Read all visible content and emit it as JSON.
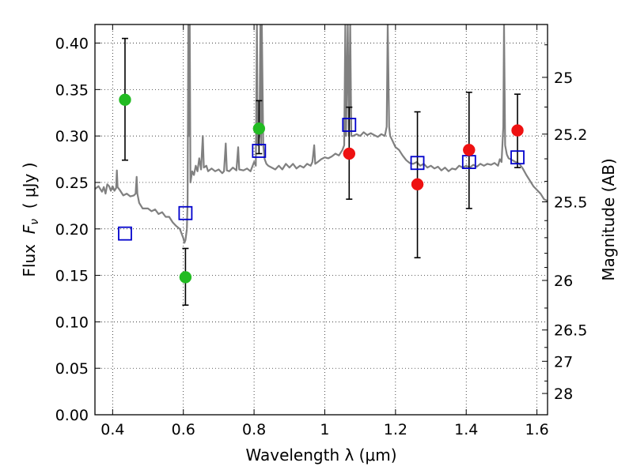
{
  "chart_data": {
    "type": "scatter",
    "title": "",
    "xlabel": "Wavelength  λ (μm)",
    "ylabel": "Flux  F_ν  ( μJy )",
    "ylabel_parts": {
      "prefix": "Flux  ",
      "var": "F",
      "sub": "ν",
      "suffix": "  ( μJy )"
    },
    "ylabel_right": "Magnitude (AB)",
    "xlim": [
      0.35,
      1.63
    ],
    "ylim": [
      0.0,
      0.42
    ],
    "grid": true,
    "colors": {
      "spectrum": "#808080",
      "green": "#22bb22",
      "red": "#ee1111",
      "model_box": "#0000cc",
      "errorbar": "#000000"
    },
    "x_ticks": [
      {
        "value": 0.4,
        "label": "0.4"
      },
      {
        "value": 0.6,
        "label": "0.6"
      },
      {
        "value": 0.8,
        "label": "0.8"
      },
      {
        "value": 1.0,
        "label": "1"
      },
      {
        "value": 1.2,
        "label": "1.2"
      },
      {
        "value": 1.4,
        "label": "1.4"
      },
      {
        "value": 1.6,
        "label": "1.6"
      }
    ],
    "y_ticks": [
      {
        "value": 0.0,
        "label": "0.00"
      },
      {
        "value": 0.05,
        "label": "0.05"
      },
      {
        "value": 0.1,
        "label": "0.10"
      },
      {
        "value": 0.15,
        "label": "0.15"
      },
      {
        "value": 0.2,
        "label": "0.20"
      },
      {
        "value": 0.25,
        "label": "0.25"
      },
      {
        "value": 0.3,
        "label": "0.30"
      },
      {
        "value": 0.35,
        "label": "0.35"
      },
      {
        "value": 0.4,
        "label": "0.40"
      }
    ],
    "right_ticks": [
      {
        "mag": 25.0,
        "label": "25"
      },
      {
        "mag": 25.2,
        "label": "25.2"
      },
      {
        "mag": 25.5,
        "label": "25.5"
      },
      {
        "mag": 26.0,
        "label": "26"
      },
      {
        "mag": 26.5,
        "label": "26.5"
      },
      {
        "mag": 27.0,
        "label": "27"
      },
      {
        "mag": 28.0,
        "label": "28"
      }
    ],
    "right_minor_mags": [
      24.9,
      25.1,
      25.3,
      25.4,
      25.6,
      25.7,
      25.8,
      25.9,
      26.25,
      26.75,
      27.5
    ],
    "series": [
      {
        "marker": "green-circle",
        "points": [
          {
            "x": 0.435,
            "y": 0.339,
            "err_lo": 0.274,
            "err_hi": 0.405
          },
          {
            "x": 0.606,
            "y": 0.148,
            "err_lo": 0.118,
            "err_hi": 0.179
          },
          {
            "x": 0.814,
            "y": 0.308,
            "err_lo": 0.281,
            "err_hi": 0.338
          }
        ]
      },
      {
        "marker": "red-circle",
        "points": [
          {
            "x": 1.069,
            "y": 0.281,
            "err_lo": 0.232,
            "err_hi": 0.331
          },
          {
            "x": 1.262,
            "y": 0.248,
            "err_lo": 0.169,
            "err_hi": 0.326
          },
          {
            "x": 1.408,
            "y": 0.285,
            "err_lo": 0.222,
            "err_hi": 0.347
          },
          {
            "x": 1.545,
            "y": 0.306,
            "err_lo": 0.266,
            "err_hi": 0.345
          }
        ]
      },
      {
        "marker": "blue-open-square",
        "points": [
          {
            "x": 0.435,
            "y": 0.195
          },
          {
            "x": 0.606,
            "y": 0.217
          },
          {
            "x": 0.814,
            "y": 0.284
          },
          {
            "x": 1.069,
            "y": 0.312
          },
          {
            "x": 1.262,
            "y": 0.271
          },
          {
            "x": 1.408,
            "y": 0.272
          },
          {
            "x": 1.545,
            "y": 0.277
          }
        ]
      },
      {
        "marker": "spectrum-line",
        "points": [
          [
            0.35,
            0.243
          ],
          [
            0.36,
            0.246
          ],
          [
            0.37,
            0.24
          ],
          [
            0.375,
            0.245
          ],
          [
            0.38,
            0.238
          ],
          [
            0.385,
            0.248
          ],
          [
            0.39,
            0.246
          ],
          [
            0.395,
            0.241
          ],
          [
            0.4,
            0.246
          ],
          [
            0.405,
            0.241
          ],
          [
            0.41,
            0.244
          ],
          [
            0.412,
            0.263
          ],
          [
            0.414,
            0.245
          ],
          [
            0.42,
            0.242
          ],
          [
            0.43,
            0.236
          ],
          [
            0.44,
            0.238
          ],
          [
            0.45,
            0.235
          ],
          [
            0.46,
            0.236
          ],
          [
            0.465,
            0.238
          ],
          [
            0.468,
            0.256
          ],
          [
            0.47,
            0.238
          ],
          [
            0.475,
            0.228
          ],
          [
            0.485,
            0.222
          ],
          [
            0.5,
            0.222
          ],
          [
            0.51,
            0.219
          ],
          [
            0.52,
            0.221
          ],
          [
            0.53,
            0.216
          ],
          [
            0.54,
            0.218
          ],
          [
            0.55,
            0.213
          ],
          [
            0.56,
            0.213
          ],
          [
            0.57,
            0.207
          ],
          [
            0.58,
            0.203
          ],
          [
            0.59,
            0.2
          ],
          [
            0.595,
            0.195
          ],
          [
            0.6,
            0.19
          ],
          [
            0.603,
            0.185
          ],
          [
            0.606,
            0.188
          ],
          [
            0.61,
            0.2
          ],
          [
            0.612,
            0.23
          ],
          [
            0.614,
            0.42
          ],
          [
            0.616,
            0.3
          ],
          [
            0.618,
            0.42
          ],
          [
            0.62,
            0.25
          ],
          [
            0.625,
            0.262
          ],
          [
            0.63,
            0.258
          ],
          [
            0.635,
            0.268
          ],
          [
            0.64,
            0.262
          ],
          [
            0.645,
            0.276
          ],
          [
            0.65,
            0.264
          ],
          [
            0.655,
            0.3
          ],
          [
            0.658,
            0.266
          ],
          [
            0.665,
            0.268
          ],
          [
            0.67,
            0.262
          ],
          [
            0.68,
            0.265
          ],
          [
            0.69,
            0.262
          ],
          [
            0.7,
            0.264
          ],
          [
            0.71,
            0.26
          ],
          [
            0.715,
            0.262
          ],
          [
            0.72,
            0.292
          ],
          [
            0.723,
            0.263
          ],
          [
            0.73,
            0.262
          ],
          [
            0.74,
            0.266
          ],
          [
            0.75,
            0.263
          ],
          [
            0.755,
            0.288
          ],
          [
            0.758,
            0.264
          ],
          [
            0.77,
            0.263
          ],
          [
            0.78,
            0.265
          ],
          [
            0.79,
            0.262
          ],
          [
            0.8,
            0.272
          ],
          [
            0.805,
            0.268
          ],
          [
            0.808,
            0.42
          ],
          [
            0.81,
            0.29
          ],
          [
            0.815,
            0.3
          ],
          [
            0.818,
            0.42
          ],
          [
            0.82,
            0.29
          ],
          [
            0.822,
            0.42
          ],
          [
            0.826,
            0.29
          ],
          [
            0.83,
            0.275
          ],
          [
            0.835,
            0.27
          ],
          [
            0.84,
            0.268
          ],
          [
            0.85,
            0.266
          ],
          [
            0.86,
            0.264
          ],
          [
            0.87,
            0.268
          ],
          [
            0.88,
            0.264
          ],
          [
            0.89,
            0.27
          ],
          [
            0.9,
            0.266
          ],
          [
            0.91,
            0.27
          ],
          [
            0.92,
            0.265
          ],
          [
            0.93,
            0.268
          ],
          [
            0.94,
            0.266
          ],
          [
            0.95,
            0.27
          ],
          [
            0.96,
            0.268
          ],
          [
            0.965,
            0.272
          ],
          [
            0.97,
            0.29
          ],
          [
            0.973,
            0.27
          ],
          [
            0.98,
            0.272
          ],
          [
            0.99,
            0.275
          ],
          [
            1.0,
            0.277
          ],
          [
            1.01,
            0.276
          ],
          [
            1.02,
            0.278
          ],
          [
            1.03,
            0.281
          ],
          [
            1.04,
            0.279
          ],
          [
            1.05,
            0.285
          ],
          [
            1.055,
            0.29
          ],
          [
            1.058,
            0.42
          ],
          [
            1.06,
            0.3
          ],
          [
            1.065,
            0.42
          ],
          [
            1.068,
            0.3
          ],
          [
            1.072,
            0.42
          ],
          [
            1.075,
            0.3
          ],
          [
            1.08,
            0.3
          ],
          [
            1.09,
            0.302
          ],
          [
            1.1,
            0.3
          ],
          [
            1.11,
            0.304
          ],
          [
            1.12,
            0.301
          ],
          [
            1.13,
            0.303
          ],
          [
            1.14,
            0.301
          ],
          [
            1.15,
            0.299
          ],
          [
            1.16,
            0.302
          ],
          [
            1.17,
            0.3
          ],
          [
            1.175,
            0.31
          ],
          [
            1.178,
            0.42
          ],
          [
            1.182,
            0.31
          ],
          [
            1.185,
            0.3
          ],
          [
            1.19,
            0.296
          ],
          [
            1.195,
            0.292
          ],
          [
            1.2,
            0.288
          ],
          [
            1.21,
            0.285
          ],
          [
            1.22,
            0.279
          ],
          [
            1.23,
            0.274
          ],
          [
            1.24,
            0.271
          ],
          [
            1.25,
            0.27
          ],
          [
            1.26,
            0.272
          ],
          [
            1.27,
            0.268
          ],
          [
            1.28,
            0.27
          ],
          [
            1.29,
            0.266
          ],
          [
            1.3,
            0.268
          ],
          [
            1.31,
            0.265
          ],
          [
            1.32,
            0.267
          ],
          [
            1.33,
            0.263
          ],
          [
            1.34,
            0.266
          ],
          [
            1.35,
            0.262
          ],
          [
            1.36,
            0.265
          ],
          [
            1.37,
            0.264
          ],
          [
            1.38,
            0.268
          ],
          [
            1.39,
            0.266
          ],
          [
            1.4,
            0.268
          ],
          [
            1.41,
            0.266
          ],
          [
            1.42,
            0.269
          ],
          [
            1.43,
            0.267
          ],
          [
            1.44,
            0.27
          ],
          [
            1.45,
            0.268
          ],
          [
            1.46,
            0.27
          ],
          [
            1.47,
            0.269
          ],
          [
            1.48,
            0.271
          ],
          [
            1.49,
            0.268
          ],
          [
            1.495,
            0.275
          ],
          [
            1.5,
            0.272
          ],
          [
            1.505,
            0.31
          ],
          [
            1.507,
            0.42
          ],
          [
            1.51,
            0.29
          ],
          [
            1.515,
            0.28
          ],
          [
            1.52,
            0.276
          ],
          [
            1.53,
            0.274
          ],
          [
            1.54,
            0.272
          ],
          [
            1.55,
            0.27
          ],
          [
            1.56,
            0.265
          ],
          [
            1.57,
            0.258
          ],
          [
            1.58,
            0.252
          ],
          [
            1.59,
            0.246
          ],
          [
            1.6,
            0.242
          ],
          [
            1.61,
            0.238
          ],
          [
            1.62,
            0.232
          ],
          [
            1.63,
            0.23
          ]
        ]
      }
    ]
  }
}
